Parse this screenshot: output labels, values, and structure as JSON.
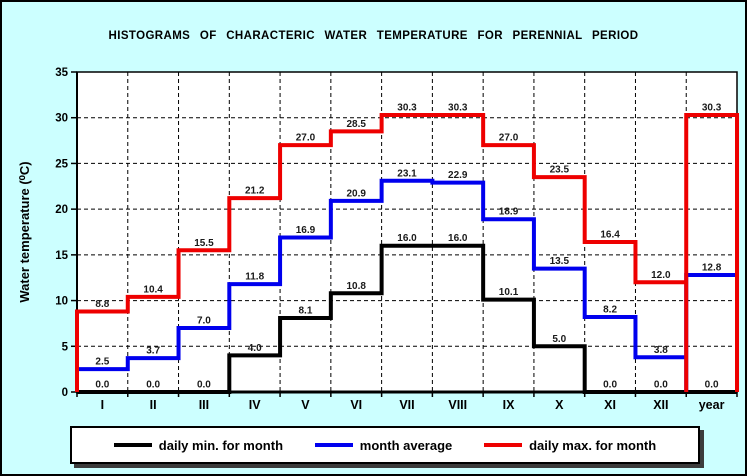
{
  "chart_data": {
    "type": "line",
    "subtype": "step-histogram",
    "title": "HISTOGRAMS OF CHARACTERIC WATER TEMPERATURE FOR PERENNIAL PERIOD",
    "xlabel": "",
    "ylabel": "Water temperature (⁰C)",
    "ylim": [
      0,
      35
    ],
    "yticks": [
      0,
      5,
      10,
      15,
      20,
      25,
      30,
      35
    ],
    "grid": "dashed",
    "legend_position": "bottom",
    "categories": [
      "I",
      "II",
      "III",
      "IV",
      "V",
      "VI",
      "VII",
      "VIII",
      "IX",
      "X",
      "XI",
      "XII",
      "year"
    ],
    "series": [
      {
        "name": "daily min. for month",
        "color": "#000000",
        "values": [
          0.0,
          0.0,
          0.0,
          4.0,
          8.1,
          10.8,
          16.0,
          16.0,
          10.1,
          5.0,
          0.0,
          0.0,
          0.0
        ]
      },
      {
        "name": "month average",
        "color": "#0000EE",
        "values": [
          2.5,
          3.7,
          7.0,
          11.8,
          16.9,
          20.9,
          23.1,
          22.9,
          18.9,
          13.5,
          8.2,
          3.8,
          12.8
        ]
      },
      {
        "name": "daily max. for month",
        "color": "#EE0000",
        "values": [
          8.8,
          10.4,
          15.5,
          21.2,
          27.0,
          28.5,
          30.3,
          30.3,
          27.0,
          23.5,
          16.4,
          12.0,
          30.3
        ]
      }
    ],
    "colors": {
      "background": "#CCFFFF",
      "plot_background": "#FFFFFF",
      "grid": "#000000",
      "value_labels": "#1a1a1a"
    }
  }
}
